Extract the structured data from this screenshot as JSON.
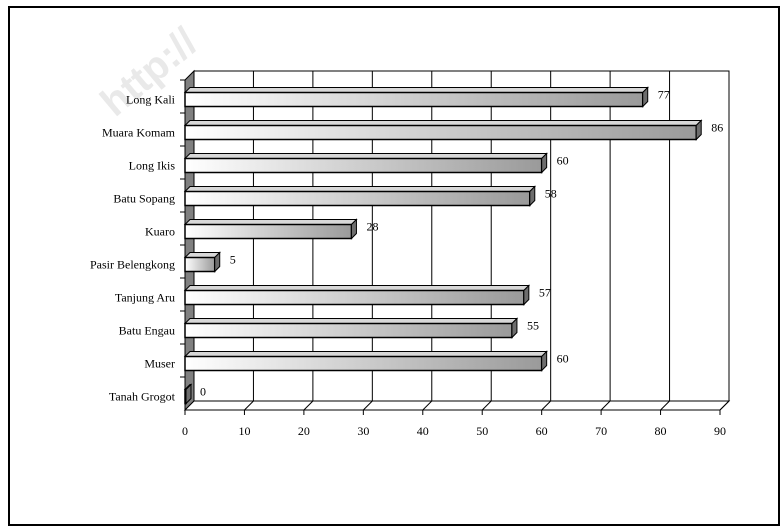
{
  "chart_data": {
    "type": "bar",
    "orientation": "horizontal",
    "style": "3d",
    "categories": [
      "Long Kali",
      "Muara Komam",
      "Long Ikis",
      "Batu Sopang",
      "Kuaro",
      "Pasir Belengkong",
      "Tanjung Aru",
      "Batu Engau",
      "Muser",
      "Tanah Grogot"
    ],
    "values": [
      77,
      86,
      60,
      58,
      28,
      5,
      57,
      55,
      60,
      0
    ],
    "data_labels": [
      "77",
      "86",
      "60",
      "58",
      "28",
      "5",
      "57",
      "55",
      "60",
      "0"
    ],
    "x_ticks": [
      "0",
      "10",
      "20",
      "30",
      "40",
      "50",
      "60",
      "70",
      "80",
      "90"
    ],
    "xlim": [
      0,
      90
    ],
    "grid": true,
    "legend": false,
    "watermark": "http://"
  }
}
